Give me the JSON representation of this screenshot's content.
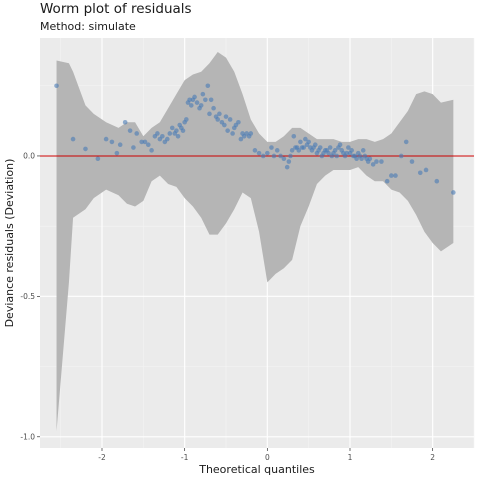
{
  "chart_data": {
    "type": "scatter",
    "title": "Worm plot of residuals",
    "subtitle": "Method: simulate",
    "xlabel": "Theoretical quantiles",
    "ylabel": "Deviance residuals (Deviation)",
    "xlim": [
      -2.75,
      2.5
    ],
    "ylim": [
      -1.04,
      0.42
    ],
    "x_ticks": [
      -2,
      -1,
      0,
      1,
      2
    ],
    "x_tick_labels": [
      "-2",
      "-1",
      "0",
      "1",
      "2"
    ],
    "y_ticks": [
      -1.0,
      -0.5,
      0.0
    ],
    "y_tick_labels": [
      "-1.0",
      "-0.5",
      "0.0"
    ],
    "grid": true,
    "reference_line": {
      "y": 0,
      "color": "#cc0000"
    },
    "band": {
      "color": "#b5b5b5",
      "x": [
        -2.55,
        -2.4,
        -2.35,
        -2.2,
        -2.1,
        -1.95,
        -1.8,
        -1.7,
        -1.6,
        -1.5,
        -1.4,
        -1.3,
        -1.2,
        -1.1,
        -1.0,
        -0.9,
        -0.8,
        -0.7,
        -0.6,
        -0.5,
        -0.4,
        -0.3,
        -0.2,
        -0.1,
        0.0,
        0.1,
        0.2,
        0.3,
        0.4,
        0.5,
        0.6,
        0.7,
        0.8,
        0.9,
        1.0,
        1.1,
        1.2,
        1.3,
        1.4,
        1.5,
        1.6,
        1.7,
        1.8,
        1.9,
        2.0,
        2.1,
        2.25
      ],
      "upper": [
        0.34,
        0.33,
        0.3,
        0.18,
        0.15,
        0.12,
        0.1,
        0.12,
        0.12,
        0.07,
        0.1,
        0.12,
        0.17,
        0.22,
        0.27,
        0.29,
        0.3,
        0.33,
        0.37,
        0.35,
        0.3,
        0.22,
        0.13,
        0.08,
        0.05,
        0.05,
        0.07,
        0.1,
        0.1,
        0.08,
        0.06,
        0.06,
        0.06,
        0.05,
        0.05,
        0.06,
        0.06,
        0.05,
        0.06,
        0.08,
        0.12,
        0.16,
        0.22,
        0.23,
        0.22,
        0.19,
        0.2
      ],
      "lower": [
        -0.98,
        -0.45,
        -0.22,
        -0.19,
        -0.15,
        -0.12,
        -0.14,
        -0.17,
        -0.18,
        -0.16,
        -0.09,
        -0.07,
        -0.1,
        -0.11,
        -0.15,
        -0.18,
        -0.22,
        -0.28,
        -0.28,
        -0.24,
        -0.19,
        -0.13,
        -0.15,
        -0.27,
        -0.45,
        -0.42,
        -0.4,
        -0.37,
        -0.25,
        -0.18,
        -0.1,
        -0.07,
        -0.05,
        -0.05,
        -0.05,
        -0.04,
        -0.07,
        -0.09,
        -0.09,
        -0.12,
        -0.13,
        -0.16,
        -0.21,
        -0.27,
        -0.31,
        -0.34,
        -0.31
      ]
    },
    "series": [
      {
        "color": "#4a7cb5",
        "x": [
          -2.55,
          -2.35,
          -2.2,
          -2.05,
          -1.95,
          -1.88,
          -1.82,
          -1.78,
          -1.72,
          -1.66,
          -1.62,
          -1.58,
          -1.52,
          -1.48,
          -1.44,
          -1.4,
          -1.36,
          -1.33,
          -1.3,
          -1.27,
          -1.24,
          -1.21,
          -1.18,
          -1.15,
          -1.12,
          -1.1,
          -1.08,
          -1.06,
          -1.04,
          -1.02,
          -1.0,
          -0.98,
          -0.96,
          -0.94,
          -0.92,
          -0.9,
          -0.88,
          -0.85,
          -0.82,
          -0.8,
          -0.78,
          -0.75,
          -0.72,
          -0.7,
          -0.68,
          -0.65,
          -0.62,
          -0.6,
          -0.58,
          -0.55,
          -0.52,
          -0.5,
          -0.48,
          -0.45,
          -0.42,
          -0.4,
          -0.38,
          -0.35,
          -0.32,
          -0.3,
          -0.28,
          -0.25,
          -0.22,
          -0.2,
          -0.15,
          -0.1,
          -0.05,
          0.0,
          0.05,
          0.08,
          0.12,
          0.16,
          0.2,
          0.24,
          0.26,
          0.28,
          0.3,
          0.32,
          0.34,
          0.36,
          0.38,
          0.4,
          0.42,
          0.44,
          0.46,
          0.48,
          0.5,
          0.52,
          0.54,
          0.56,
          0.58,
          0.6,
          0.62,
          0.64,
          0.66,
          0.68,
          0.7,
          0.72,
          0.74,
          0.76,
          0.78,
          0.8,
          0.82,
          0.84,
          0.86,
          0.88,
          0.9,
          0.92,
          0.94,
          0.96,
          0.98,
          1.0,
          1.02,
          1.04,
          1.06,
          1.08,
          1.1,
          1.12,
          1.14,
          1.16,
          1.18,
          1.2,
          1.22,
          1.24,
          1.28,
          1.32,
          1.38,
          1.45,
          1.5,
          1.55,
          1.62,
          1.68,
          1.75,
          1.85,
          1.92,
          2.05,
          2.25
        ],
        "y": [
          0.25,
          0.06,
          0.025,
          -0.01,
          0.06,
          0.05,
          0.01,
          0.04,
          0.12,
          0.09,
          0.03,
          0.08,
          0.05,
          0.05,
          0.04,
          0.02,
          0.07,
          0.08,
          0.06,
          0.07,
          0.05,
          0.06,
          0.08,
          0.1,
          0.08,
          0.09,
          0.07,
          0.11,
          0.1,
          0.09,
          0.12,
          0.13,
          0.19,
          0.2,
          0.18,
          0.2,
          0.21,
          0.19,
          0.17,
          0.18,
          0.22,
          0.2,
          0.25,
          0.15,
          0.2,
          0.17,
          0.14,
          0.13,
          0.15,
          0.12,
          0.11,
          0.14,
          0.09,
          0.13,
          0.08,
          0.1,
          0.11,
          0.12,
          0.06,
          0.08,
          0.07,
          0.08,
          0.07,
          0.08,
          0.02,
          0.01,
          0.0,
          0.01,
          0.03,
          0.0,
          0.02,
          0.0,
          -0.01,
          -0.04,
          -0.02,
          0.0,
          0.02,
          0.07,
          0.03,
          0.03,
          0.02,
          0.05,
          0.03,
          0.03,
          0.06,
          0.04,
          0.05,
          0.03,
          0.02,
          0.03,
          0.04,
          0.01,
          0.02,
          0.03,
          0.0,
          0.01,
          0.02,
          0.02,
          0.01,
          0.03,
          0.0,
          0.01,
          0.02,
          0.0,
          0.03,
          0.04,
          0.02,
          0.01,
          0.0,
          0.01,
          0.03,
          0.01,
          0.02,
          0.0,
          0.0,
          -0.01,
          0.01,
          0.0,
          -0.01,
          0.02,
          0.0,
          -0.01,
          -0.02,
          -0.01,
          -0.03,
          -0.02,
          -0.02,
          -0.09,
          -0.07,
          -0.07,
          0.0,
          0.05,
          -0.02,
          -0.06,
          -0.05,
          -0.09,
          -0.13
        ]
      }
    ]
  }
}
